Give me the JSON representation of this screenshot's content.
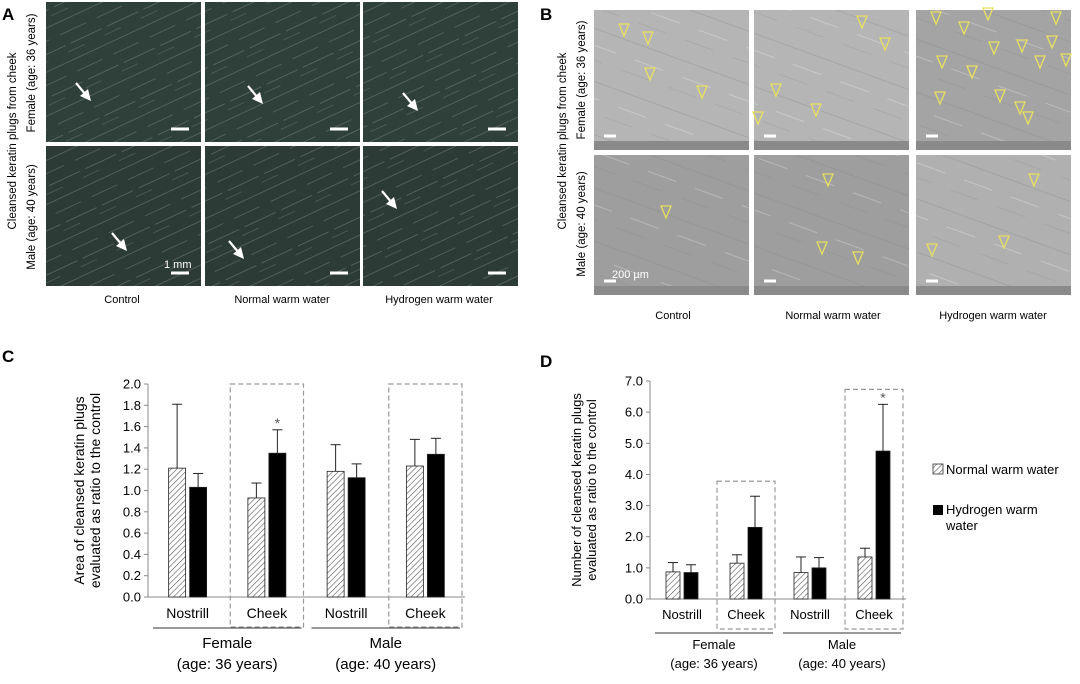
{
  "panels": {
    "A": {
      "letter": "A",
      "ylabel": "Cleansed keratin plugs from cheek",
      "row_labels": [
        "Female (age: 36 years)",
        "Male (age: 40 years)"
      ],
      "col_labels": [
        "Control",
        "Normal warm water",
        "Hydrogen warm water"
      ],
      "scale_label": "1 mm",
      "bg_colors": [
        "#2f3f3a",
        "#2d3b37"
      ]
    },
    "B": {
      "letter": "B",
      "ylabel": "Cleansed keratin plugs from cheek",
      "row_labels": [
        "Female (age: 36 years)",
        "Male (age: 40 years)"
      ],
      "col_labels": [
        "Control",
        "Normal warm water",
        "Hydrogen warm water"
      ],
      "scale_label": "200 µm",
      "marker_color": "#e8e060",
      "bg_colors": [
        "#b5b5b5",
        "#9e9e9e"
      ]
    }
  },
  "legend": {
    "normal": "Normal warm water",
    "hydrogen": "Hydrogen warm water"
  },
  "chart_data": [
    {
      "panel": "C",
      "type": "bar",
      "ylabel": "Area of cleansed keratin plugs evaluated as ratio to the control",
      "ylim": [
        0,
        2.0
      ],
      "yticks": [
        "0.0",
        "0.2",
        "0.4",
        "0.6",
        "0.8",
        "1.0",
        "1.2",
        "1.4",
        "1.6",
        "1.8",
        "2.0"
      ],
      "categories": [
        "Nostrill",
        "Cheek",
        "Nostrill",
        "Cheek"
      ],
      "groups": [
        {
          "label": "Female",
          "sublabel": "(age: 36 years)"
        },
        {
          "label": "Male",
          "sublabel": "(age: 40 years)"
        }
      ],
      "series": [
        {
          "name": "Normal warm water",
          "values": [
            1.21,
            0.93,
            1.18,
            1.23
          ],
          "errors": [
            0.6,
            0.14,
            0.25,
            0.25
          ]
        },
        {
          "name": "Hydrogen warm water",
          "values": [
            1.03,
            1.35,
            1.12,
            1.34
          ],
          "errors": [
            0.13,
            0.22,
            0.13,
            0.15
          ]
        }
      ],
      "highlight_categories": [
        1,
        3
      ],
      "significance": [
        {
          "category": 1,
          "series": 1,
          "mark": "*"
        }
      ]
    },
    {
      "panel": "D",
      "type": "bar",
      "ylabel": "Number of cleansed keratin plugs evaluated as ratio to the control",
      "ylim": [
        0,
        7.0
      ],
      "yticks": [
        "0.0",
        "1.0",
        "2.0",
        "3.0",
        "4.0",
        "5.0",
        "6.0",
        "7.0"
      ],
      "categories": [
        "Nostrill",
        "Cheek",
        "Nostrill",
        "Cheek"
      ],
      "groups": [
        {
          "label": "Female",
          "sublabel": "(age: 36 years)"
        },
        {
          "label": "Male",
          "sublabel": "(age: 40 years)"
        }
      ],
      "series": [
        {
          "name": "Normal warm water",
          "values": [
            0.87,
            1.15,
            0.85,
            1.35
          ],
          "errors": [
            0.3,
            0.27,
            0.5,
            0.28
          ]
        },
        {
          "name": "Hydrogen warm water",
          "values": [
            0.85,
            2.3,
            1.0,
            4.75
          ],
          "errors": [
            0.25,
            1.0,
            0.33,
            1.5
          ]
        }
      ],
      "highlight_categories": [
        1,
        3
      ],
      "significance": [
        {
          "category": 3,
          "series": 1,
          "mark": "*"
        }
      ]
    }
  ]
}
